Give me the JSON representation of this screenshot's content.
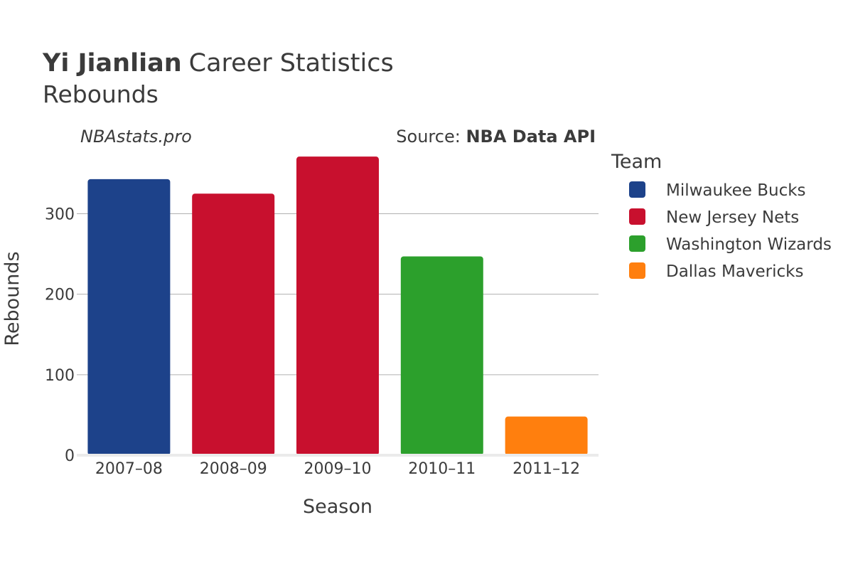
{
  "header": {
    "player_name": "Yi Jianlian",
    "title_rest": "Career Statistics",
    "subtitle": "Rebounds",
    "watermark": "NBAstats.pro",
    "source_prefix": "Source: ",
    "source_name": "NBA Data API"
  },
  "chart_data": {
    "type": "bar",
    "title": "Yi Jianlian Career Statistics",
    "subtitle": "Rebounds",
    "xlabel": "Season",
    "ylabel": "Rebounds",
    "categories": [
      "2007–08",
      "2008–09",
      "2009–10",
      "2010–11",
      "2011–12"
    ],
    "values": [
      343,
      325,
      371,
      247,
      48
    ],
    "teams": [
      "Milwaukee Bucks",
      "New Jersey Nets",
      "New Jersey Nets",
      "Washington Wizards",
      "Dallas Mavericks"
    ],
    "ylim": [
      0,
      380
    ],
    "yticks": [
      0,
      100,
      200,
      300
    ],
    "grid": true,
    "legend": {
      "title": "Team",
      "position": "right",
      "entries": [
        {
          "name": "Milwaukee Bucks",
          "color": "#1d428a"
        },
        {
          "name": "New Jersey Nets",
          "color": "#c8102e"
        },
        {
          "name": "Washington Wizards",
          "color": "#2ca02c"
        },
        {
          "name": "Dallas Mavericks",
          "color": "#ff7f0e"
        }
      ]
    }
  }
}
